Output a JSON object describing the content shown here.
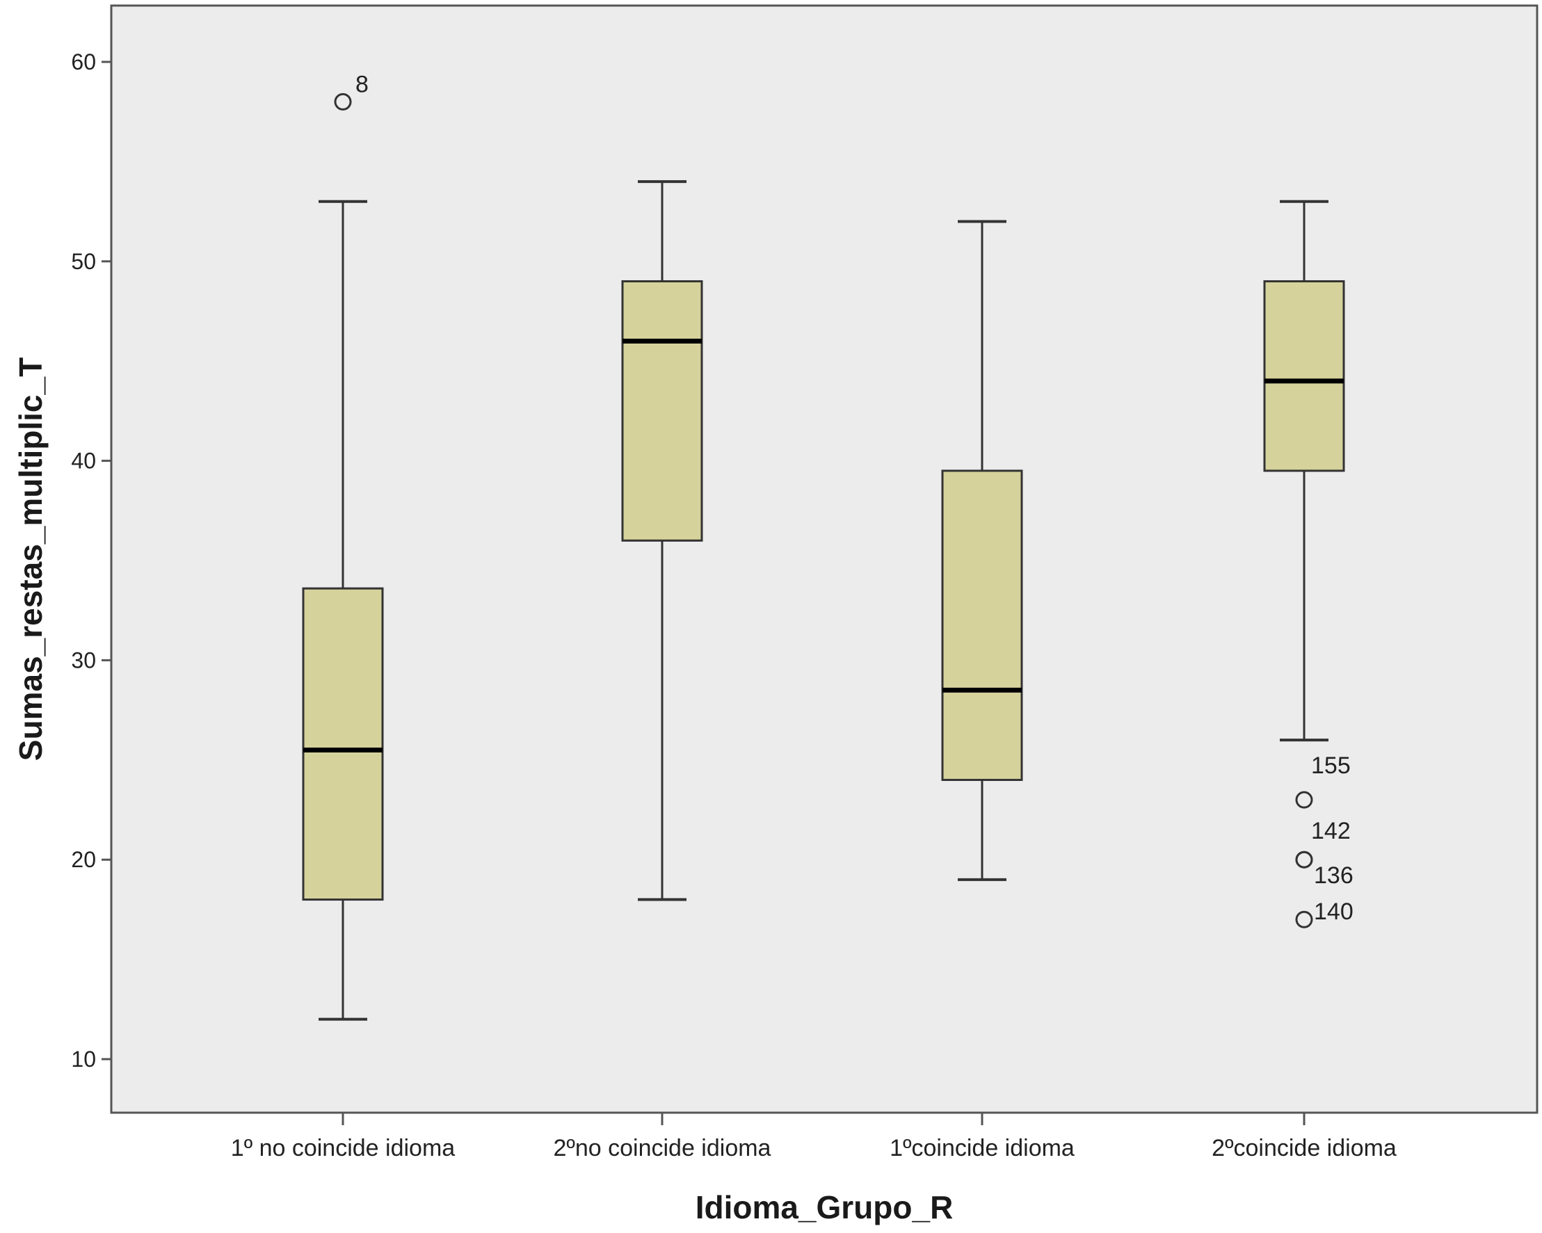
{
  "chart_data": {
    "type": "boxplot",
    "xlabel": "Idioma_Grupo_R",
    "ylabel": "Sumas_restas_multiplic_T",
    "ylim": [
      7,
      63
    ],
    "yticks": [
      10,
      20,
      30,
      40,
      50,
      60
    ],
    "yticks_text": [
      "10",
      "20",
      "30",
      "40",
      "50",
      "60"
    ],
    "grid": false,
    "categories": [
      "1º no coincide idioma",
      "2ºno coincide idioma",
      "1ºcoincide idioma",
      "2ºcoincide idioma"
    ],
    "boxes": [
      {
        "whisker_low": 12,
        "q1": 18,
        "median": 25.5,
        "q3": 33.6,
        "whisker_high": 53,
        "outliers": [
          {
            "value": 58,
            "label": "8"
          }
        ]
      },
      {
        "whisker_low": 18,
        "q1": 36,
        "median": 46,
        "q3": 49,
        "whisker_high": 54,
        "outliers": []
      },
      {
        "whisker_low": 19,
        "q1": 24,
        "median": 28.5,
        "q3": 39.5,
        "whisker_high": 52,
        "outliers": []
      },
      {
        "whisker_low": 26,
        "q1": 39.5,
        "median": 44,
        "q3": 49,
        "whisker_high": 53,
        "outliers": [
          {
            "value": 23,
            "label": "155"
          },
          {
            "value": 20,
            "label": "142"
          },
          {
            "value": 20,
            "label": "136"
          },
          {
            "value": 17,
            "label": "140"
          }
        ]
      }
    ],
    "colors": {
      "plot_background": "#ececec",
      "box_fill": "#d6d29c",
      "box_stroke": "#333333",
      "median": "#000000",
      "frame": "#555555"
    }
  }
}
